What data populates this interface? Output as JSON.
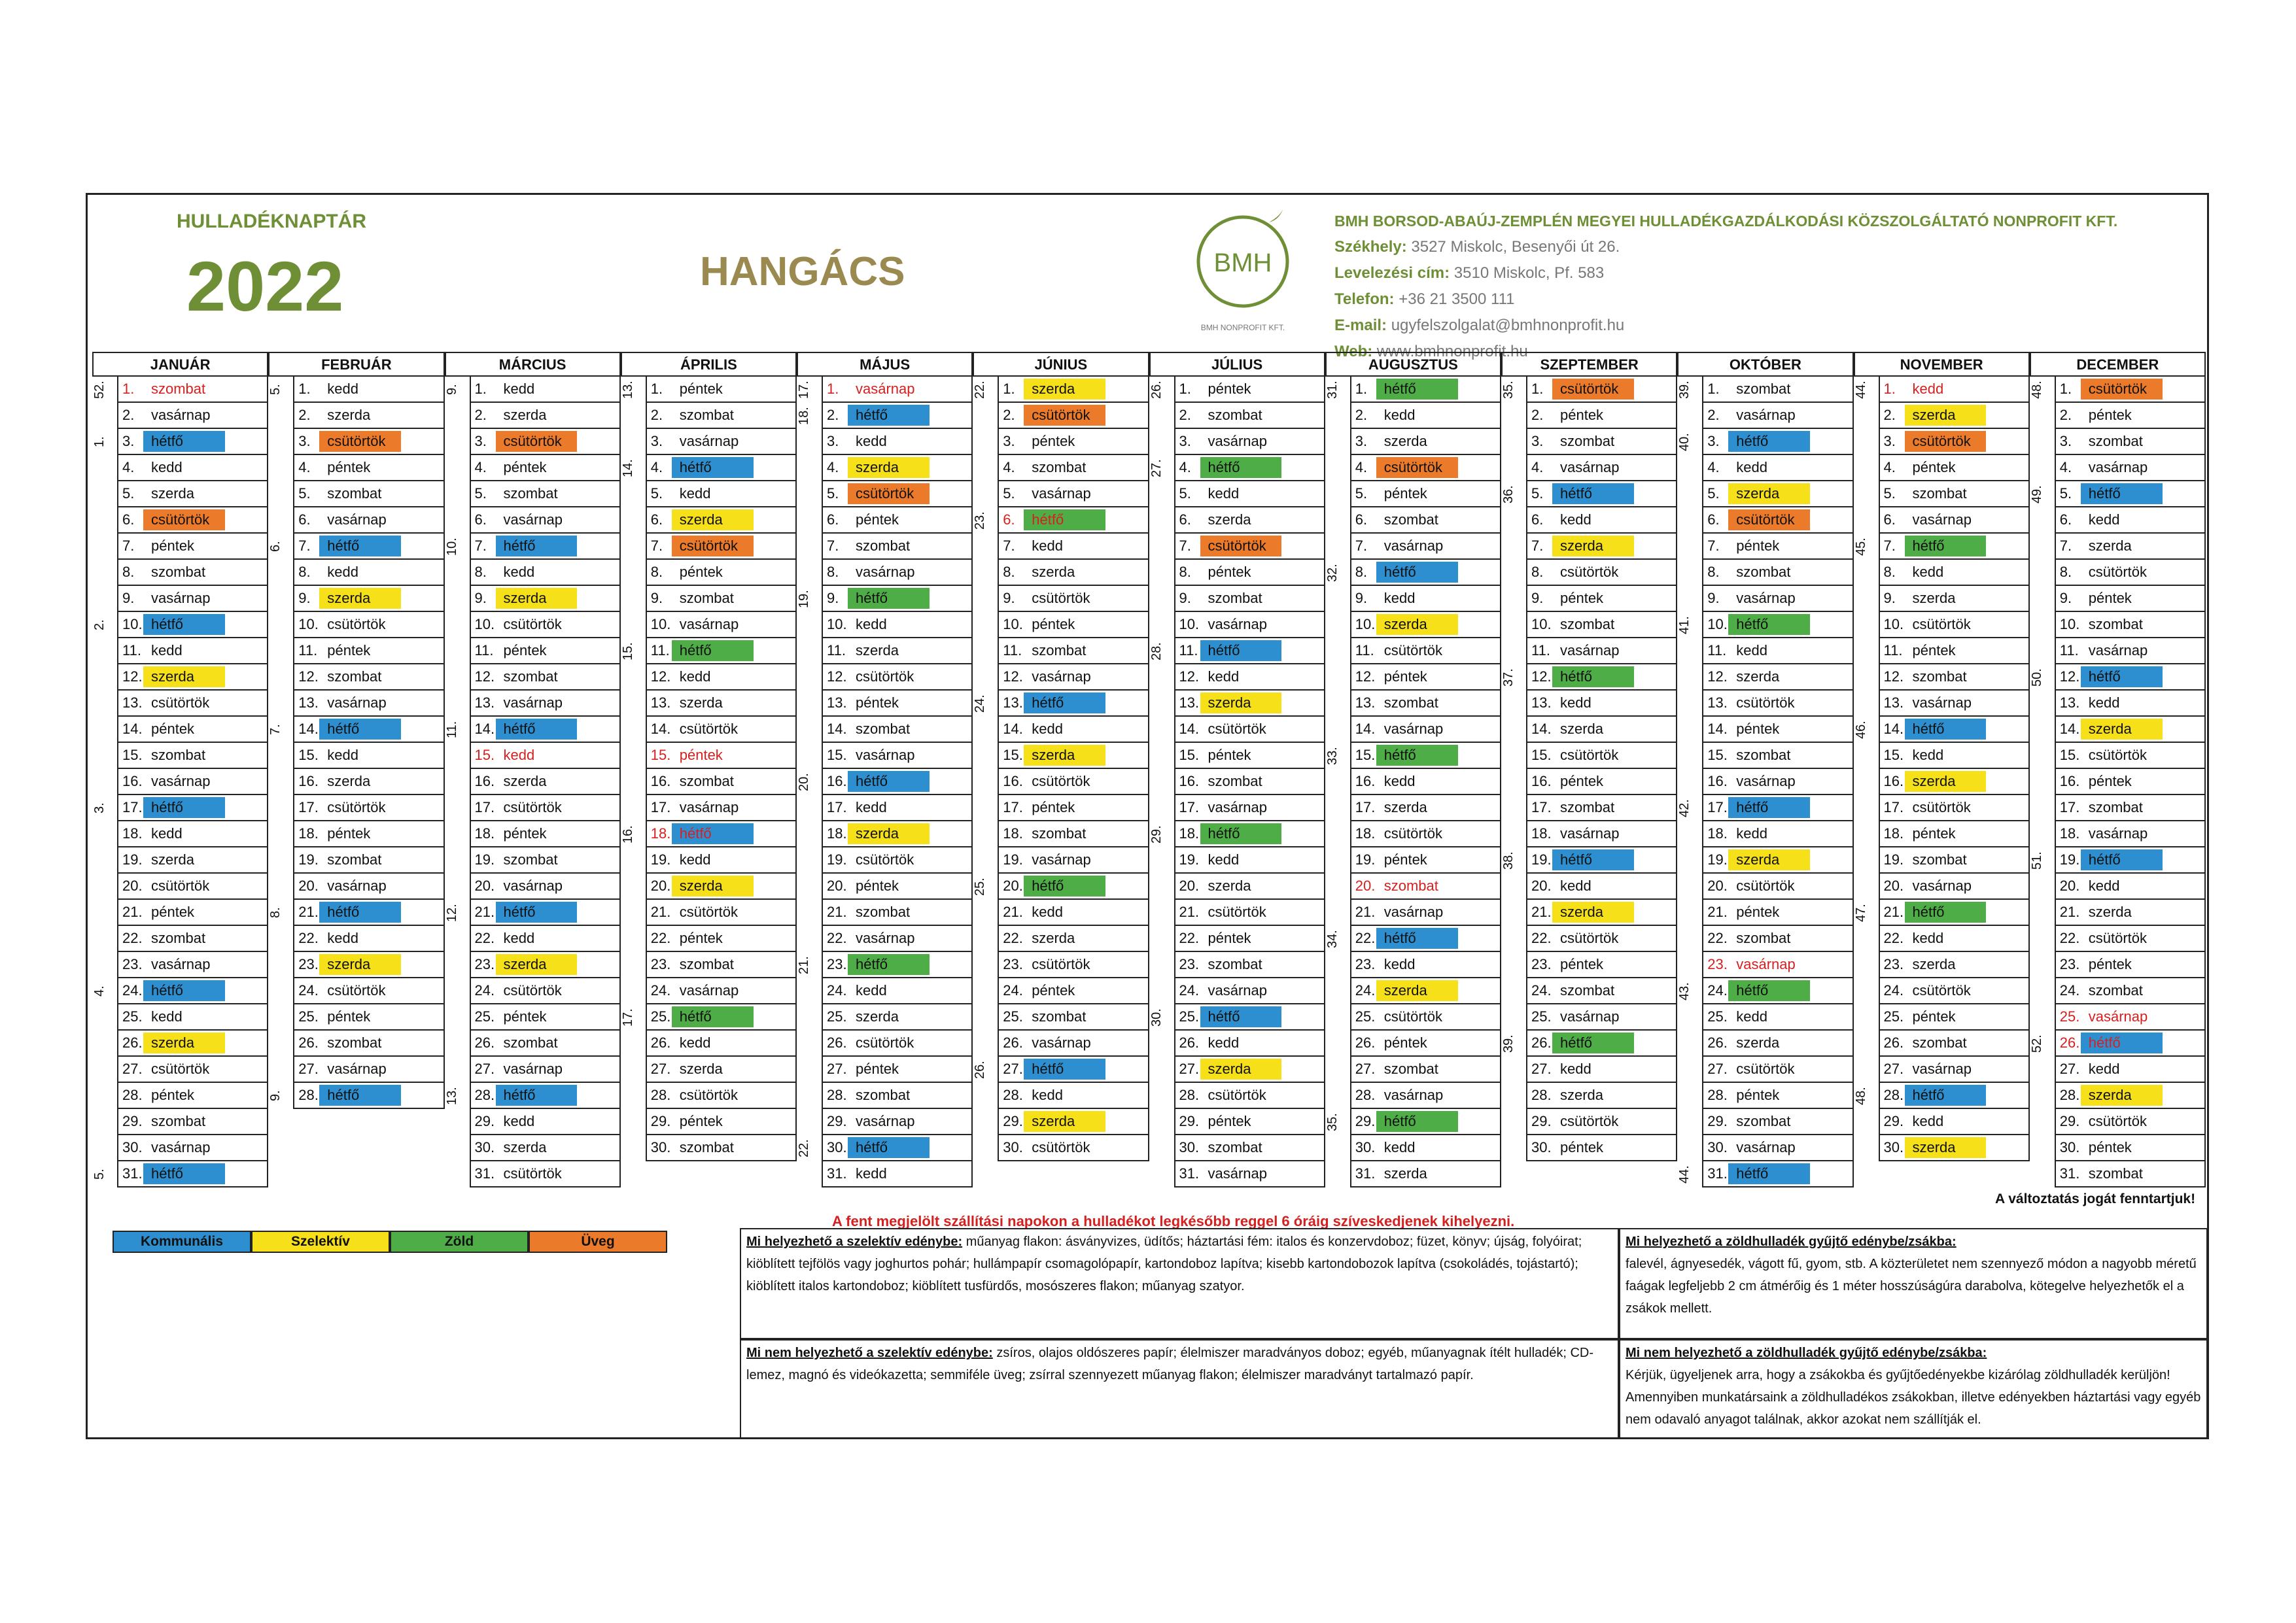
{
  "header": {
    "label": "HULLADÉKNAPTÁR",
    "year": "2022",
    "place": "HANGÁCS",
    "logo_text": "BMH",
    "logo_sub": "BMH NONPROFIT KFT.",
    "company": "BMH BORSOD-ABAÚJ-ZEMPLÉN MEGYEI HULLADÉKGAZDÁLKODÁSI KÖZSZOLGÁLTATÓ NONPROFIT KFT.",
    "seat_label": "Székhely:",
    "seat": "3527 Miskolc, Besenyői út 26.",
    "mail_label": "Levelezési cím:",
    "mail": "3510 Miskolc, Pf. 583",
    "phone_label": "Telefon:",
    "phone": "+36 21 3500 111",
    "email_label": "E-mail:",
    "email": "ugyfelszolgalat@bmhnonprofit.hu",
    "web_label": "Web:",
    "web": "www.bmhnonprofit.hu"
  },
  "colors": {
    "kommunalis": "#2e8fd0",
    "szelektiv": "#f6e01a",
    "zold": "#4fad48",
    "uveg": "#ec7a2b"
  },
  "months": [
    {
      "name": "JANUÁR",
      "start": 5,
      "len": 31,
      "weeks": {
        "1": "52.",
        "3": "1.",
        "10": "2.",
        "17": "3.",
        "24": "4.",
        "31": "5."
      },
      "red": [
        1
      ],
      "k": [
        3,
        10,
        17,
        24,
        31
      ],
      "s": [
        12,
        26
      ],
      "z": [],
      "u": [
        6
      ]
    },
    {
      "name": "FEBRUÁR",
      "start": 1,
      "len": 28,
      "weeks": {
        "1": "5.",
        "7": "6.",
        "14": "7.",
        "21": "8.",
        "28": "9."
      },
      "red": [],
      "k": [
        7,
        14,
        21,
        28
      ],
      "s": [
        9,
        23
      ],
      "z": [],
      "u": [
        3
      ]
    },
    {
      "name": "MÁRCIUS",
      "start": 1,
      "len": 31,
      "weeks": {
        "1": "9.",
        "7": "10.",
        "14": "11.",
        "21": "12.",
        "28": "13."
      },
      "red": [
        15
      ],
      "k": [
        7,
        14,
        21,
        28
      ],
      "s": [
        9,
        23
      ],
      "z": [],
      "u": [
        3
      ]
    },
    {
      "name": "ÁPRILIS",
      "start": 4,
      "len": 30,
      "weeks": {
        "1": "13.",
        "4": "14.",
        "11": "15.",
        "18": "16.",
        "25": "17."
      },
      "red": [
        15,
        18
      ],
      "k": [
        4,
        18
      ],
      "s": [
        6,
        20
      ],
      "z": [
        11,
        25
      ],
      "u": [
        7
      ]
    },
    {
      "name": "MÁJUS",
      "start": 6,
      "len": 31,
      "weeks": {
        "1": "17.",
        "2": "18.",
        "9": "19.",
        "16": "20.",
        "23": "21.",
        "30": "22."
      },
      "red": [
        1
      ],
      "k": [
        2,
        16,
        30
      ],
      "s": [
        4,
        18
      ],
      "z": [
        9,
        23
      ],
      "u": [
        5
      ]
    },
    {
      "name": "JÚNIUS",
      "start": 2,
      "len": 30,
      "weeks": {
        "1": "22.",
        "6": "23.",
        "13": "24.",
        "20": "25.",
        "27": "26."
      },
      "red": [
        6
      ],
      "k": [
        13,
        27
      ],
      "s": [
        1,
        15,
        29
      ],
      "z": [
        6,
        20
      ],
      "u": [
        2
      ]
    },
    {
      "name": "JÚLIUS",
      "start": 4,
      "len": 31,
      "weeks": {
        "1": "26.",
        "4": "27.",
        "11": "28.",
        "18": "29.",
        "25": "30."
      },
      "red": [],
      "k": [
        11,
        25
      ],
      "s": [
        13,
        27
      ],
      "z": [
        4,
        18
      ],
      "u": [
        7
      ]
    },
    {
      "name": "AUGUSZTUS",
      "start": 0,
      "len": 31,
      "weeks": {
        "1": "31.",
        "8": "32.",
        "15": "33.",
        "22": "34.",
        "29": "35."
      },
      "red": [
        20
      ],
      "k": [
        8,
        22
      ],
      "s": [
        10,
        24
      ],
      "z": [
        1,
        15,
        29
      ],
      "u": [
        4
      ]
    },
    {
      "name": "SZEPTEMBER",
      "start": 3,
      "len": 30,
      "weeks": {
        "1": "35.",
        "5": "36.",
        "12": "37.",
        "19": "38.",
        "26": "39."
      },
      "red": [],
      "k": [
        5,
        19
      ],
      "s": [
        7,
        21
      ],
      "z": [
        12,
        26
      ],
      "u": [
        1
      ]
    },
    {
      "name": "OKTÓBER",
      "start": 5,
      "len": 31,
      "weeks": {
        "1": "39.",
        "3": "40.",
        "10": "41.",
        "17": "42.",
        "24": "43.",
        "31": "44."
      },
      "red": [
        23
      ],
      "k": [
        3,
        17,
        31
      ],
      "s": [
        5,
        19
      ],
      "z": [
        10,
        24
      ],
      "u": [
        6
      ]
    },
    {
      "name": "NOVEMBER",
      "start": 1,
      "len": 30,
      "weeks": {
        "1": "44.",
        "7": "45.",
        "14": "46.",
        "21": "47.",
        "28": "48."
      },
      "red": [
        1
      ],
      "k": [
        14,
        28
      ],
      "s": [
        2,
        16,
        30
      ],
      "z": [
        7,
        21
      ],
      "u": [
        3
      ]
    },
    {
      "name": "DECEMBER",
      "start": 3,
      "len": 31,
      "weeks": {
        "1": "48.",
        "5": "49.",
        "12": "50.",
        "19": "51.",
        "26": "52."
      },
      "red": [
        25,
        26
      ],
      "k": [
        5,
        12,
        19,
        26
      ],
      "s": [
        14,
        28
      ],
      "z": [],
      "u": [
        1
      ]
    }
  ],
  "weekdays": [
    "hétfő",
    "kedd",
    "szerda",
    "csütörtök",
    "péntek",
    "szombat",
    "vasárnap"
  ],
  "legend": [
    "Kommunális",
    "Szelektív",
    "Zöld",
    "Üveg"
  ],
  "notes": {
    "pickup": "A fent megjelölt szállítási napokon a hulladékot legkésőbb reggel 6 óráig szíveskedjenek kihelyezni.",
    "rights": "A változtatás jogát fenntartjuk!"
  },
  "boxes": {
    "sel_yes_title": "Mi helyezhető a szelektív edénybe:",
    "sel_yes_text": "műanyag flakon: ásványvizes, üdítős; háztartási fém: italos és konzervdoboz; füzet, könyv; újság, folyóirat; kiöblített tejfölös vagy joghurtos pohár; hullámpapír csomagolópapír, kartondoboz lapítva; kisebb kartondobozok lapítva (csokoládés, tojástartó); kiöblített italos kartondoboz; kiöblített tusfürdős, mosószeres flakon; műanyag szatyor.",
    "sel_no_title": "Mi nem helyezhető a szelektív edénybe:",
    "sel_no_text": "zsíros, olajos oldószeres papír; élelmiszer maradványos doboz; egyéb, műanyagnak ítélt hulladék; CD-lemez, magnó és videókazetta; semmiféle üveg; zsírral szennyezett műanyag flakon; élelmiszer maradványt tartalmazó papír.",
    "green_yes_title": "Mi helyezhető a zöldhulladék gyűjtő edénybe/zsákba:",
    "green_yes_text": "falevél, ágnyesedék, vágott fű, gyom, stb. A közterületet nem szennyező módon a nagyobb méretű faágak legfeljebb 2 cm átmérőig és 1 méter hosszúságúra darabolva, kötegelve helyezhetők el a zsákok mellett.",
    "green_no_title": "Mi nem helyezhető a zöldhulladék gyűjtő edénybe/zsákba:",
    "green_no_text": "Kérjük, ügyeljenek arra, hogy a zsákokba és gyűjtőedényekbe kizárólag zöldhulladék kerüljön! Amennyiben munkatársaink a zöldhulladékos zsákokban, illetve edényekben háztartási vagy egyéb nem odavaló anyagot találnak, akkor azokat nem szállítják el."
  }
}
